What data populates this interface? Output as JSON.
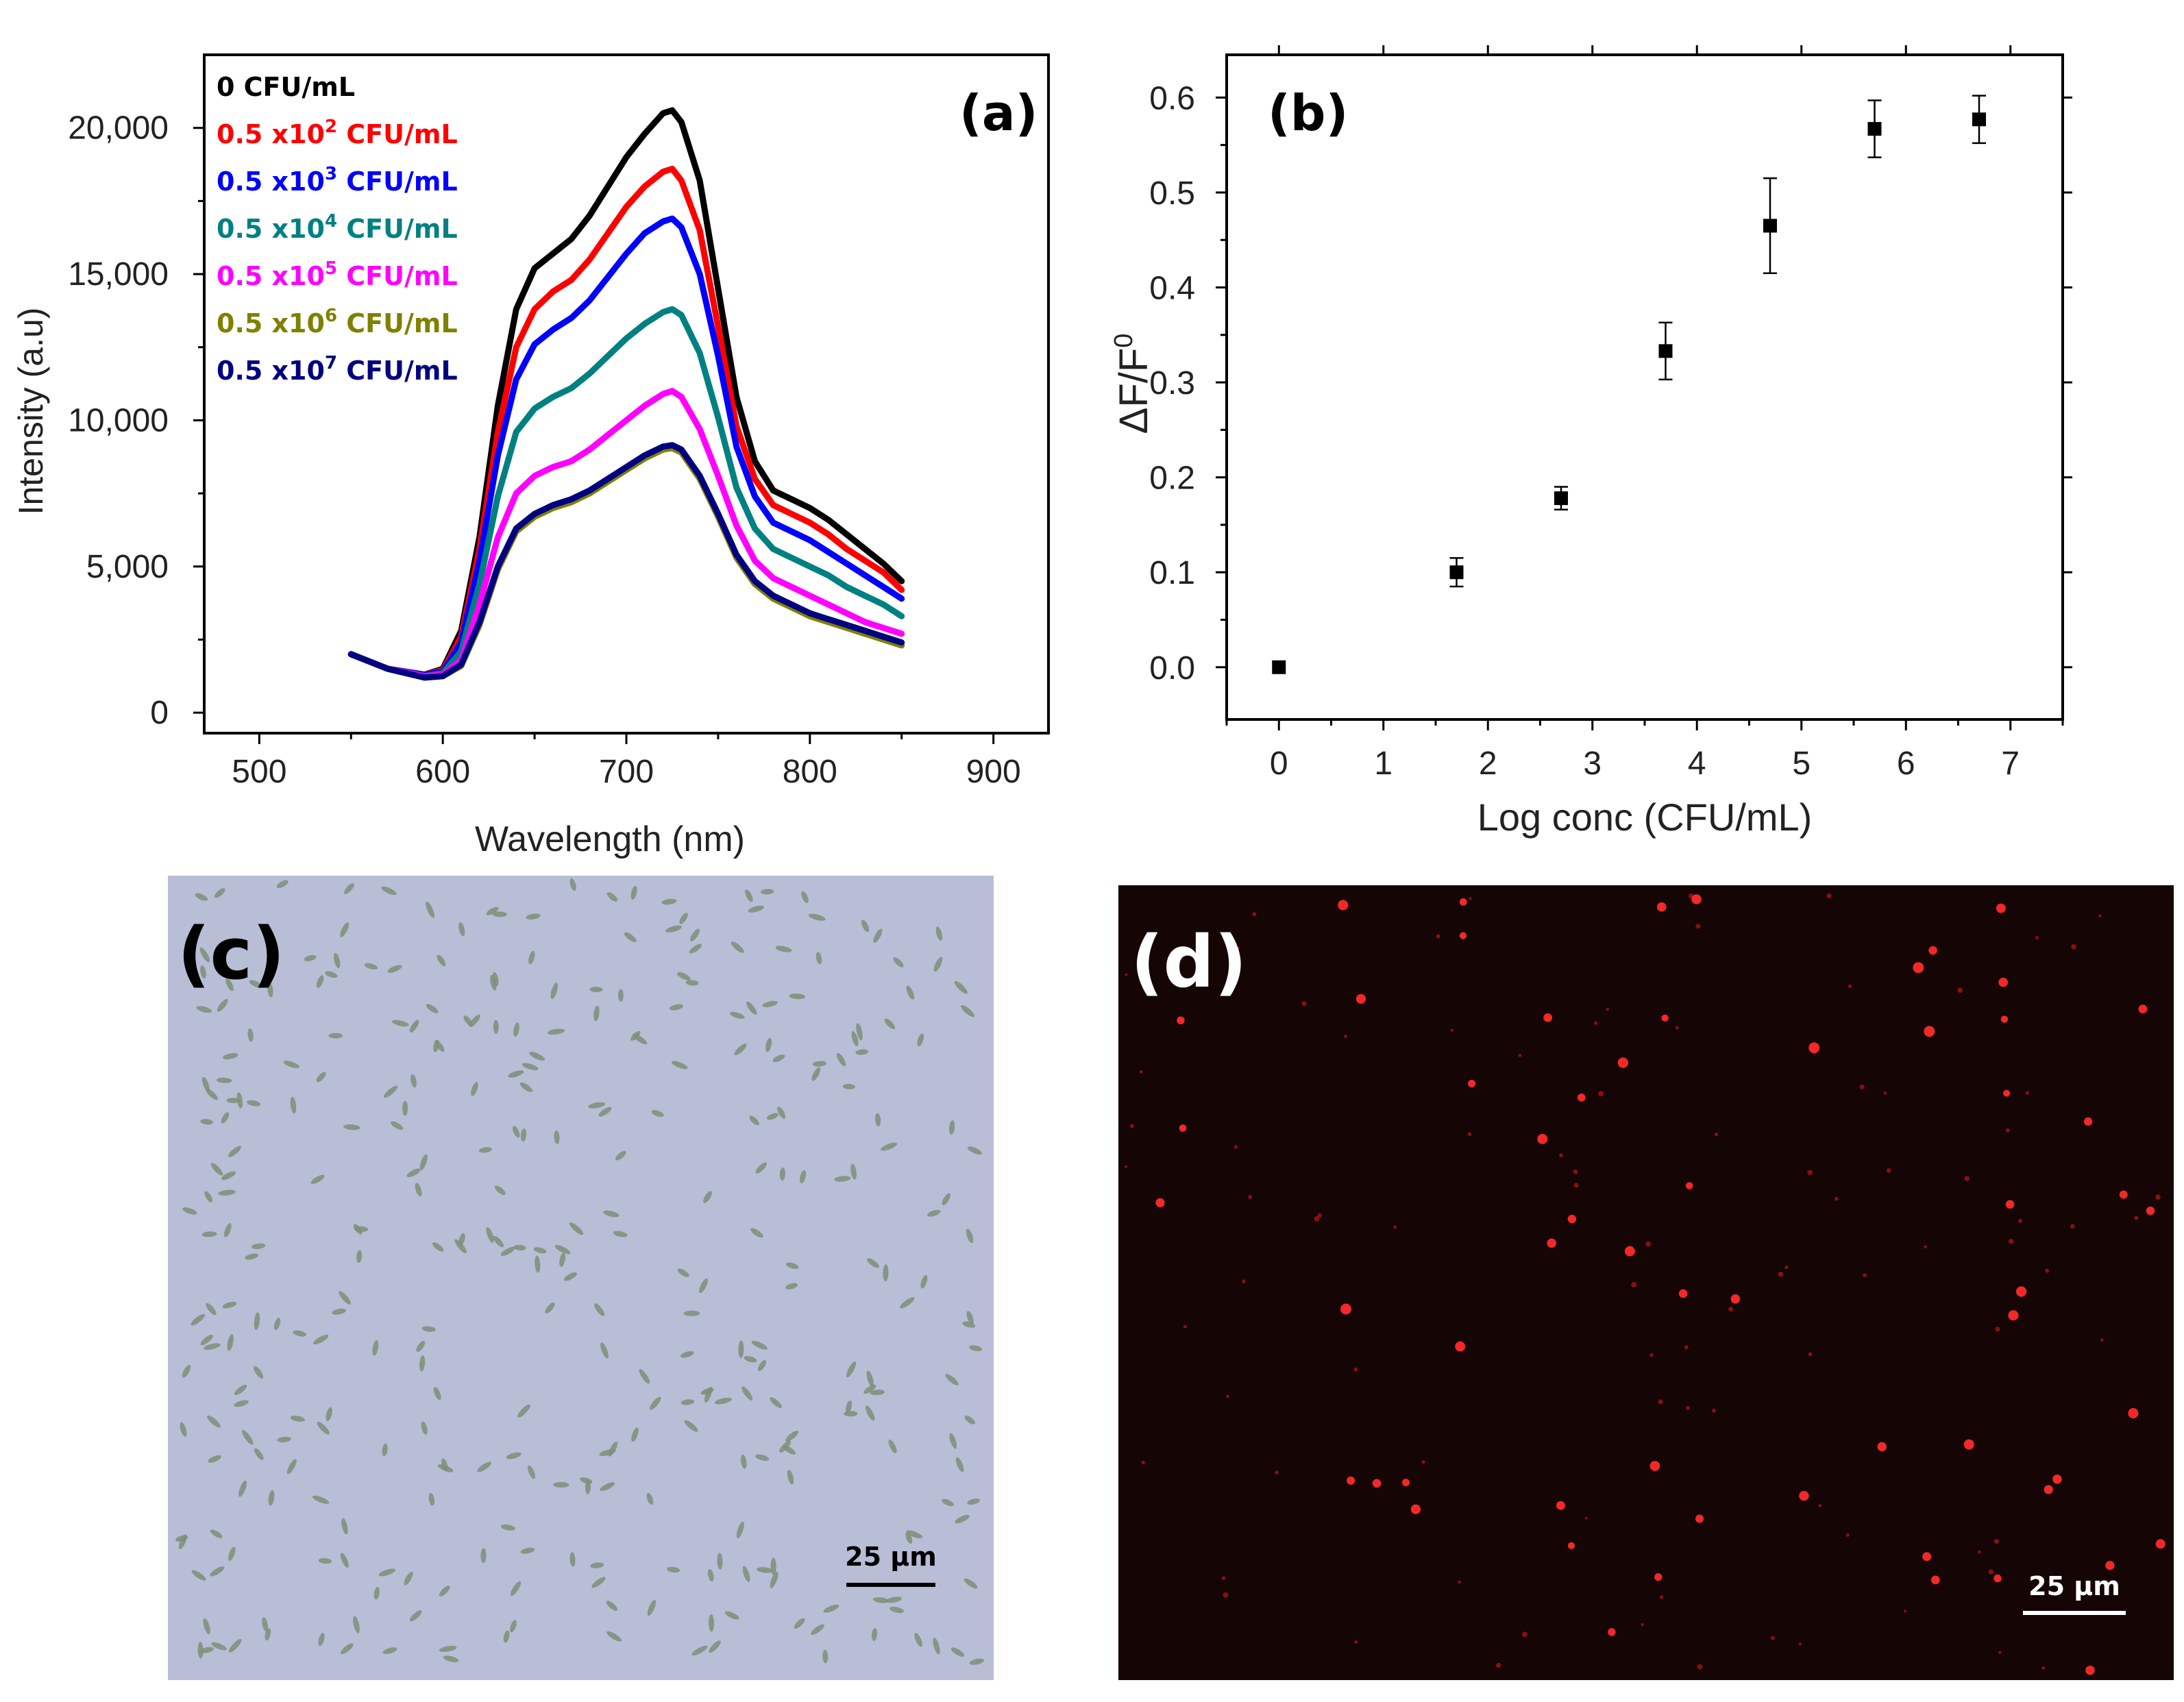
{
  "chart_data": [
    {
      "panel": "(a)",
      "type": "line",
      "xlabel": "Wavelength (nm)",
      "ylabel": "Intensity (a.u)",
      "xlim": [
        470,
        930
      ],
      "ylim": [
        -700,
        22500
      ],
      "xticks": [
        "500",
        "600",
        "700",
        "800",
        "900"
      ],
      "yticks": [
        "0",
        "5,000",
        "10,000",
        "15,000",
        "20,000"
      ],
      "x": [
        550,
        570,
        590,
        600,
        610,
        620,
        630,
        640,
        650,
        660,
        670,
        680,
        690,
        700,
        710,
        720,
        725,
        730,
        740,
        750,
        760,
        770,
        780,
        790,
        800,
        810,
        820,
        830,
        840,
        850
      ],
      "series": [
        {
          "name": "0 CFU/mL",
          "legend_base": "0 CFU/mL",
          "legend_exp": "",
          "legend_unit": "",
          "color": "#000000",
          "values": [
            2000,
            1500,
            1300,
            1500,
            2800,
            6000,
            10500,
            13800,
            15200,
            15700,
            16200,
            17000,
            18000,
            19000,
            19800,
            20500,
            20600,
            20200,
            18200,
            14500,
            10800,
            8600,
            7600,
            7300,
            7000,
            6600,
            6100,
            5600,
            5100,
            4500
          ]
        },
        {
          "name": "0.5 x10^2 CFU/mL",
          "legend_base": "0.5 x10",
          "legend_exp": "2",
          "legend_unit": " CFU/mL",
          "color": "#ff0000",
          "values": [
            2000,
            1500,
            1300,
            1450,
            2600,
            5600,
            9600,
            12500,
            13800,
            14400,
            14800,
            15500,
            16400,
            17300,
            18000,
            18500,
            18600,
            18200,
            16500,
            13200,
            9800,
            8000,
            7100,
            6800,
            6500,
            6100,
            5600,
            5200,
            4800,
            4200
          ]
        },
        {
          "name": "0.5 x10^3 CFU/mL",
          "legend_base": "0.5 x10",
          "legend_exp": "3",
          "legend_unit": " CFU/mL",
          "color": "#0000ff",
          "values": [
            2000,
            1500,
            1300,
            1400,
            2400,
            5200,
            8800,
            11400,
            12600,
            13100,
            13500,
            14100,
            14900,
            15700,
            16400,
            16800,
            16900,
            16600,
            15000,
            12200,
            9100,
            7400,
            6500,
            6200,
            5900,
            5500,
            5100,
            4700,
            4300,
            3900
          ]
        },
        {
          "name": "0.5 x10^4 CFU/mL",
          "legend_base": "0.5 x10",
          "legend_exp": "4",
          "legend_unit": " CFU/mL",
          "color": "#008080",
          "values": [
            2000,
            1500,
            1250,
            1350,
            2100,
            4400,
            7400,
            9600,
            10400,
            10800,
            11100,
            11600,
            12200,
            12800,
            13300,
            13700,
            13800,
            13600,
            12300,
            10100,
            7700,
            6300,
            5600,
            5300,
            5000,
            4700,
            4300,
            4000,
            3700,
            3300
          ]
        },
        {
          "name": "0.5 x10^5 CFU/mL",
          "legend_base": "0.5 x10",
          "legend_exp": "5",
          "legend_unit": " CFU/mL",
          "color": "#ff00ff",
          "values": [
            2000,
            1500,
            1250,
            1300,
            1800,
            3700,
            6000,
            7500,
            8100,
            8400,
            8600,
            9000,
            9500,
            10000,
            10500,
            10900,
            11000,
            10800,
            9700,
            8100,
            6400,
            5200,
            4600,
            4300,
            4000,
            3700,
            3400,
            3100,
            2900,
            2700
          ]
        },
        {
          "name": "0.5 x10^6 CFU/mL",
          "legend_base": "0.5 x10",
          "legend_exp": "6",
          "legend_unit": " CFU/mL",
          "color": "#808000",
          "values": [
            2000,
            1500,
            1200,
            1250,
            1600,
            3000,
            4900,
            6200,
            6700,
            7000,
            7200,
            7500,
            7900,
            8300,
            8700,
            9000,
            9050,
            8900,
            8000,
            6700,
            5300,
            4400,
            3900,
            3600,
            3300,
            3100,
            2900,
            2700,
            2500,
            2300
          ]
        },
        {
          "name": "0.5 x10^7 CFU/mL",
          "legend_base": "0.5 x10",
          "legend_exp": "7",
          "legend_unit": " CFU/mL",
          "color": "#000080",
          "values": [
            2000,
            1500,
            1200,
            1250,
            1650,
            3100,
            5000,
            6300,
            6800,
            7100,
            7300,
            7600,
            8000,
            8400,
            8800,
            9100,
            9150,
            9000,
            8100,
            6800,
            5400,
            4500,
            4000,
            3700,
            3400,
            3200,
            3000,
            2800,
            2600,
            2400
          ]
        }
      ]
    },
    {
      "panel": "(b)",
      "type": "scatter",
      "xlabel": "Log conc (CFU/mL)",
      "ylabel_main": "ΔF/F",
      "ylabel_sup": "0",
      "xlim": [
        -0.5,
        7.5
      ],
      "ylim": [
        -0.055,
        0.645
      ],
      "xticks": [
        "0",
        "1",
        "2",
        "3",
        "4",
        "5",
        "6",
        "7"
      ],
      "yticks": [
        "0.0",
        "0.1",
        "0.2",
        "0.3",
        "0.4",
        "0.5",
        "0.6"
      ],
      "points": [
        {
          "x": 0,
          "y": 0.0,
          "err": 0.0
        },
        {
          "x": 1.7,
          "y": 0.1,
          "err": 0.015
        },
        {
          "x": 2.7,
          "y": 0.178,
          "err": 0.012
        },
        {
          "x": 3.7,
          "y": 0.333,
          "err": 0.03
        },
        {
          "x": 4.7,
          "y": 0.465,
          "err": 0.05
        },
        {
          "x": 5.7,
          "y": 0.567,
          "err": 0.03
        },
        {
          "x": 6.7,
          "y": 0.577,
          "err": 0.025
        }
      ]
    }
  ],
  "micrographs": {
    "c": {
      "label": "(c)",
      "scale_text": "25 μm",
      "background": "#b8bed6"
    },
    "d": {
      "label": "(d)",
      "scale_text": "25 μm",
      "background": "#150505"
    }
  }
}
